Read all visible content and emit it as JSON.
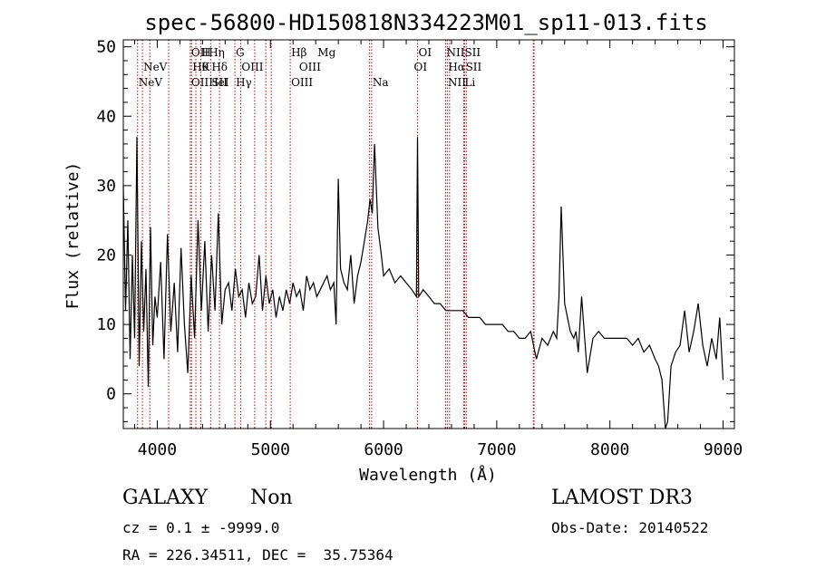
{
  "chart_data": {
    "type": "line",
    "title": "spec-56800-HD150818N334223M01_sp11-013.fits",
    "xlabel": "Wavelength (Å)",
    "ylabel": "Flux (relative)",
    "xlim": [
      3700,
      9100
    ],
    "ylim": [
      -5,
      51
    ],
    "xticks": [
      4000,
      5000,
      6000,
      7000,
      8000,
      9000
    ],
    "yticks": [
      0,
      10,
      20,
      30,
      40,
      50
    ],
    "grid": false,
    "line_color": "#000000",
    "marker_color": "#cc0000",
    "series": [
      {
        "name": "flux",
        "x": [
          3700,
          3720,
          3740,
          3760,
          3780,
          3800,
          3820,
          3840,
          3860,
          3880,
          3900,
          3920,
          3940,
          3960,
          3980,
          4000,
          4030,
          4060,
          4090,
          4120,
          4150,
          4180,
          4210,
          4240,
          4270,
          4300,
          4330,
          4360,
          4390,
          4420,
          4450,
          4480,
          4510,
          4540,
          4570,
          4600,
          4630,
          4660,
          4690,
          4720,
          4750,
          4780,
          4810,
          4840,
          4870,
          4900,
          4930,
          4960,
          4990,
          5020,
          5050,
          5080,
          5110,
          5140,
          5170,
          5200,
          5230,
          5260,
          5290,
          5320,
          5350,
          5380,
          5410,
          5440,
          5470,
          5500,
          5530,
          5560,
          5580,
          5600,
          5620,
          5650,
          5680,
          5710,
          5740,
          5770,
          5800,
          5830,
          5860,
          5880,
          5900,
          5920,
          5950,
          5980,
          6000,
          6050,
          6100,
          6150,
          6200,
          6250,
          6290,
          6300,
          6310,
          6350,
          6400,
          6450,
          6500,
          6550,
          6600,
          6650,
          6700,
          6750,
          6800,
          6850,
          6900,
          6950,
          7000,
          7050,
          7100,
          7150,
          7200,
          7250,
          7300,
          7350,
          7400,
          7450,
          7500,
          7530,
          7550,
          7570,
          7600,
          7650,
          7680,
          7700,
          7720,
          7750,
          7800,
          7850,
          7900,
          7950,
          8000,
          8050,
          8100,
          8150,
          8200,
          8250,
          8300,
          8350,
          8400,
          8430,
          8460,
          8490,
          8510,
          8540,
          8580,
          8620,
          8660,
          8700,
          8740,
          8780,
          8820,
          8860,
          8900,
          8940,
          8970,
          9000
        ],
        "y": [
          30,
          12,
          25,
          5,
          20,
          8,
          37,
          4,
          22,
          9,
          18,
          1,
          24,
          7,
          14,
          11,
          19,
          5,
          23,
          9,
          16,
          6,
          21,
          10,
          3,
          17,
          8,
          25,
          12,
          22,
          9,
          20,
          12,
          26,
          10,
          15,
          16,
          12,
          18,
          14,
          15,
          11,
          16,
          13,
          14,
          20,
          12,
          17,
          13,
          15,
          11,
          14,
          12,
          15,
          13,
          16,
          14,
          15,
          12,
          17,
          15,
          16,
          14,
          15,
          16,
          17,
          15,
          16,
          10,
          31,
          18,
          16,
          15,
          20,
          13,
          17,
          19,
          22,
          25,
          28,
          26,
          36,
          24,
          20,
          17,
          18,
          16,
          17,
          16,
          15,
          14,
          37,
          14,
          15,
          14,
          13,
          13,
          12,
          12,
          12,
          12,
          11,
          11,
          11,
          10,
          10,
          10,
          10,
          9,
          9,
          8,
          8,
          9,
          5,
          8,
          7,
          9,
          8,
          14,
          27,
          13,
          9,
          8,
          9,
          6,
          14,
          3,
          8,
          9,
          8,
          8,
          8,
          8,
          8,
          7,
          8,
          6,
          7,
          5,
          4,
          2,
          -5,
          -4,
          4,
          6,
          7,
          12,
          6,
          9,
          13,
          7,
          4,
          8,
          5,
          11,
          2
        ]
      }
    ],
    "marker_lines": [
      3826,
      3869,
      3934,
      4101,
      4292,
      4303,
      4341,
      4384,
      4472,
      4550,
      4686,
      4737,
      4861,
      4959,
      5007,
      5175,
      5876,
      5894,
      6300,
      6548,
      6563,
      6583,
      6717,
      6731,
      6708,
      7323,
      7330
    ],
    "line_labels": [
      {
        "text": "NeV",
        "x": 3869,
        "row": 2
      },
      {
        "text": "NeV",
        "x": 3826,
        "row": 3
      },
      {
        "text": "OIIHη",
        "x": 4292,
        "row": 1
      },
      {
        "text": "H",
        "x": 4384,
        "row": 1
      },
      {
        "text": "Hθ",
        "x": 4303,
        "row": 2
      },
      {
        "text": "K",
        "x": 4384,
        "row": 2
      },
      {
        "text": "Hδ",
        "x": 4472,
        "row": 2
      },
      {
        "text": "OIIHeI",
        "x": 4292,
        "row": 3
      },
      {
        "text": "SII",
        "x": 4472,
        "row": 3
      },
      {
        "text": "G",
        "x": 4686,
        "row": 1
      },
      {
        "text": "OIII",
        "x": 4737,
        "row": 2
      },
      {
        "text": "Hγ",
        "x": 4686,
        "row": 3
      },
      {
        "text": "Hβ",
        "x": 5175,
        "row": 1
      },
      {
        "text": "Mg",
        "x": 5409,
        "row": 1
      },
      {
        "text": "OIII",
        "x": 5245,
        "row": 2
      },
      {
        "text": "OIII",
        "x": 5175,
        "row": 3
      },
      {
        "text": "Na",
        "x": 5894,
        "row": 3
      },
      {
        "text": "OI",
        "x": 6300,
        "row": 1
      },
      {
        "text": "OI",
        "x": 6260,
        "row": 2
      },
      {
        "text": "NIISII",
        "x": 6548,
        "row": 1
      },
      {
        "text": "Hα",
        "x": 6563,
        "row": 2
      },
      {
        "text": "SII",
        "x": 6717,
        "row": 2
      },
      {
        "text": "NII",
        "x": 6560,
        "row": 3
      },
      {
        "text": "Li",
        "x": 6708,
        "row": 3
      }
    ]
  },
  "info": {
    "object_class": "GALAXY",
    "subclass": "Non",
    "survey": "LAMOST DR3",
    "cz": "cz = 0.1 ± -9999.0",
    "obs_date": "Obs-Date: 20140522",
    "coords": "RA = 226.34511, DEC =  35.75364"
  }
}
